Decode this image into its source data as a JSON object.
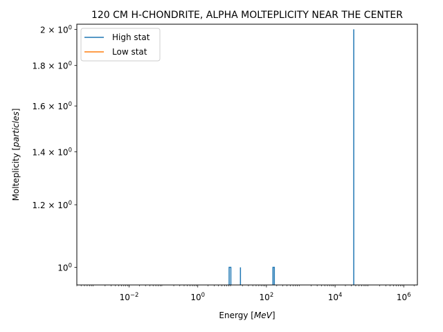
{
  "chart_data": {
    "type": "line",
    "title": "120 CM H-CHONDRITE, ALPHA MOLTEPLICITY NEAR THE CENTER",
    "xlabel": "Energy [MeV]",
    "ylabel": "Molteplicity [particles]",
    "xscale": "log",
    "yscale": "log",
    "xlim": [
      0.0003,
      2500000
    ],
    "ylim": [
      0.95,
      2.03
    ],
    "x_ticks": [
      {
        "value": 0.01,
        "base": "10",
        "exp": "−2"
      },
      {
        "value": 1,
        "base": "10",
        "exp": "0"
      },
      {
        "value": 100,
        "base": "10",
        "exp": "2"
      },
      {
        "value": 10000,
        "base": "10",
        "exp": "4"
      },
      {
        "value": 1000000,
        "base": "10",
        "exp": "6"
      }
    ],
    "y_ticks": [
      {
        "value": 1.0,
        "mant": "",
        "exp": "0"
      },
      {
        "value": 1.2,
        "mant": "1.2",
        "exp": "0"
      },
      {
        "value": 1.4,
        "mant": "1.4",
        "exp": "0"
      },
      {
        "value": 1.6,
        "mant": "1.6",
        "exp": "0"
      },
      {
        "value": 1.8,
        "mant": "1.8",
        "exp": "0"
      },
      {
        "value": 2.0,
        "mant": "2",
        "exp": "0"
      }
    ],
    "grid": false,
    "legend_position": "top-left",
    "series": [
      {
        "name": "High stat",
        "color": "#1f77b4",
        "spikes": [
          {
            "x0": 8.2,
            "x1": 9.2,
            "y": 1.0
          },
          {
            "x0": 17.5,
            "x1": 17.5,
            "y": 1.0
          },
          {
            "x0": 155,
            "x1": 170,
            "y": 1.0
          },
          {
            "x0": 35000,
            "x1": 35000,
            "y": 2.0
          }
        ]
      },
      {
        "name": "Low stat",
        "color": "#ff7f0e",
        "spikes": []
      }
    ]
  }
}
